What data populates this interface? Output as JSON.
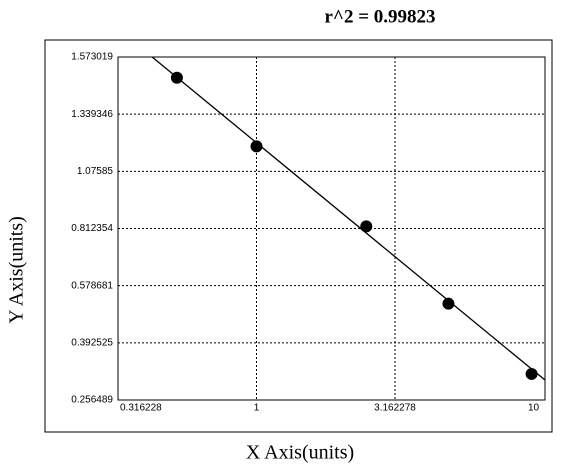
{
  "chart_data": {
    "type": "scatter",
    "title": "r^2 = 0.99823",
    "x_label": "X Axis(units)",
    "y_label": "Y Axis(units)",
    "x": [
      0.516,
      1,
      2.49,
      4.93,
      9.84
    ],
    "values": [
      1.488,
      1.191,
      0.822,
      0.52,
      0.3185
    ],
    "color": "#000000",
    "fit_line": {
      "x": [
        0.42,
        11.0
      ],
      "y": [
        1.573,
        0.304
      ]
    },
    "x_log": true,
    "xlim": [
      0.316228,
      11.0
    ],
    "xticks": [
      0.316228,
      1,
      3.162278,
      10
    ],
    "ylim": [
      0.256489,
      1.573019
    ],
    "yticks": [
      0.256489,
      0.392525,
      0.578681,
      0.812354,
      1.07585,
      1.339346,
      1.573019
    ],
    "grid": true
  }
}
